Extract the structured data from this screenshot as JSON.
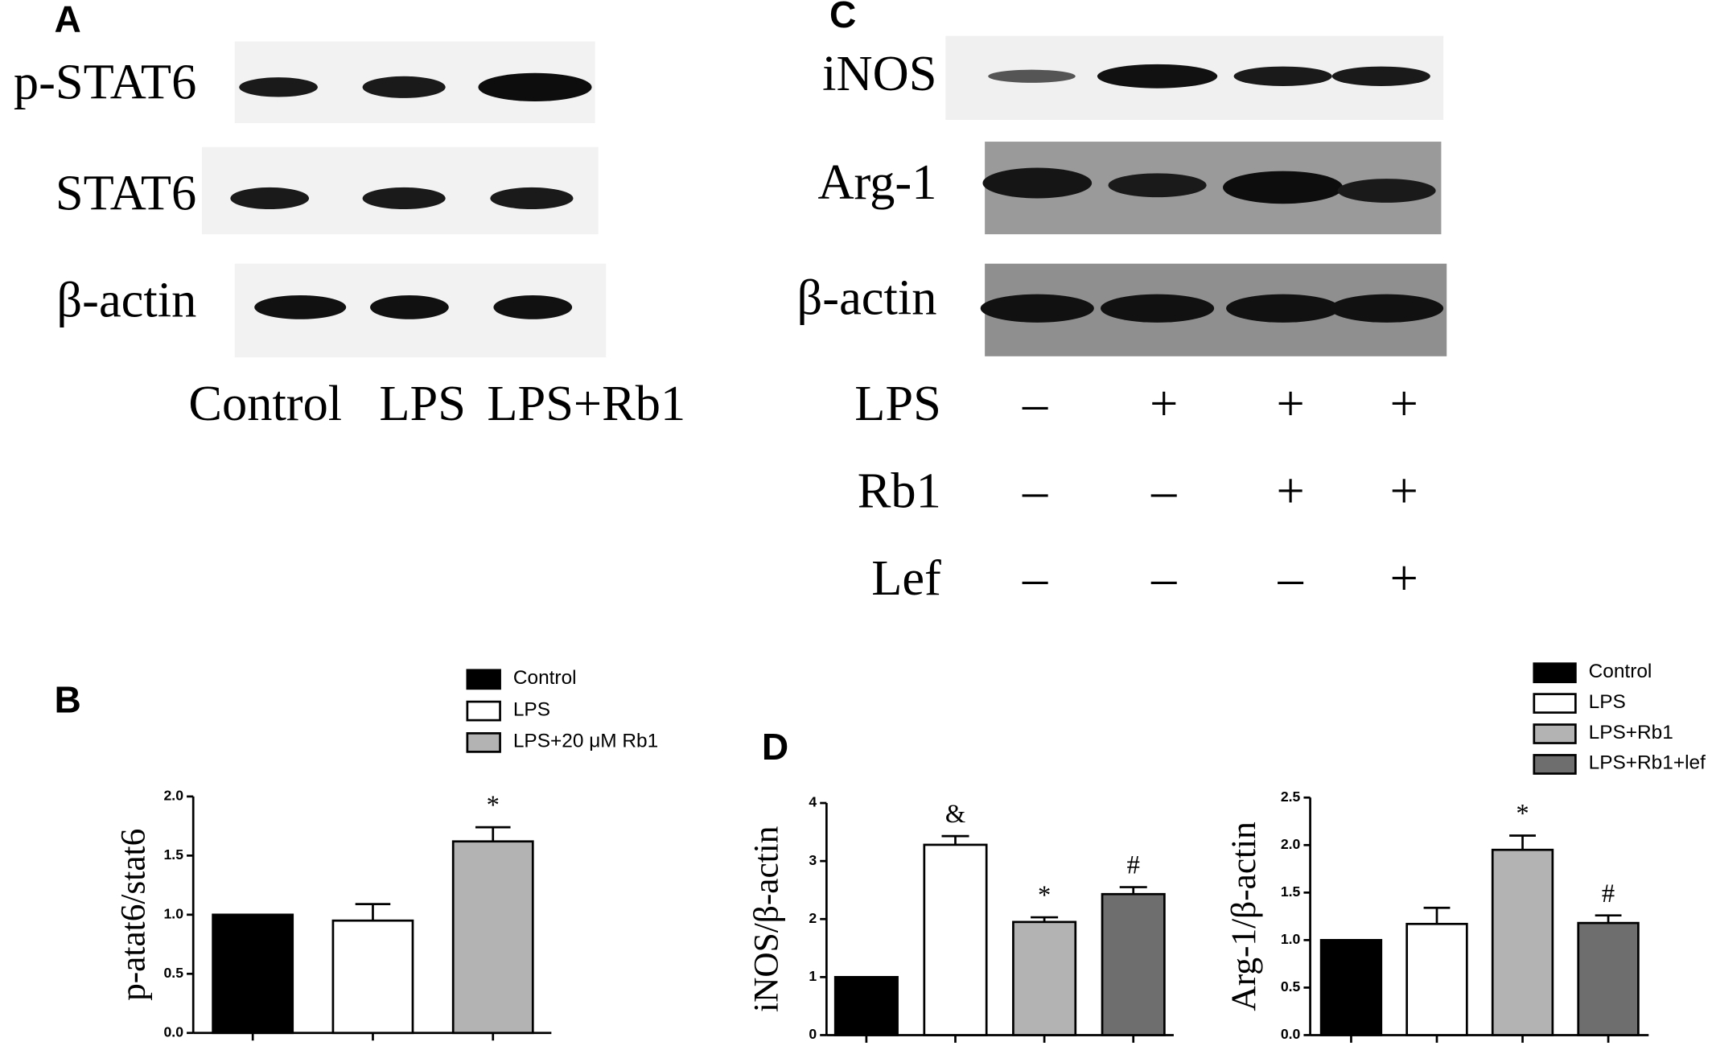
{
  "blot_a": {
    "panel": "A",
    "rows": [
      "p-STAT6",
      "STAT6",
      "β-actin"
    ],
    "lanes": [
      "Control",
      "LPS",
      "LPS+Rb1"
    ]
  },
  "blot_c": {
    "panel": "C",
    "rows": [
      "iNOS",
      "Arg-1",
      "β-actin"
    ],
    "treatments": [
      {
        "name": "LPS",
        "signs": [
          "–",
          "+",
          "+",
          "+"
        ]
      },
      {
        "name": "Rb1",
        "signs": [
          "–",
          "–",
          "+",
          "+"
        ]
      },
      {
        "name": "Lef",
        "signs": [
          "–",
          "–",
          "–",
          "+"
        ]
      }
    ]
  },
  "chart_data": [
    {
      "type": "bar",
      "panel": "B",
      "y_label": "p-atat6/stat6",
      "categories": [
        null
      ],
      "series": [
        {
          "name": "Control",
          "color": "#000000",
          "values": [
            1.0
          ],
          "errors": [
            0
          ]
        },
        {
          "name": "LPS",
          "color": "#ffffff",
          "values": [
            0.95
          ],
          "errors": [
            0.14
          ]
        },
        {
          "name": "LPS+20 μM Rb1",
          "color": "#b3b3b3",
          "values": [
            1.62
          ],
          "errors": [
            0.12
          ],
          "annotations": [
            "*"
          ]
        }
      ],
      "ylim": [
        0,
        2.0
      ],
      "yticks": [
        {
          "value": 0,
          "label": "0.0"
        },
        {
          "value": 0.5,
          "label": "0.5"
        },
        {
          "value": 1.0,
          "label": "1.0"
        },
        {
          "value": 1.5,
          "label": "1.5"
        },
        {
          "value": 2.0,
          "label": "2.0"
        }
      ]
    },
    {
      "type": "bar",
      "panel": "D",
      "y_label": "iNOS/β-actin",
      "categories": [
        null
      ],
      "series": [
        {
          "color": "#000000",
          "values": [
            1.0
          ],
          "errors": [
            0
          ]
        },
        {
          "color": "#ffffff",
          "values": [
            3.28
          ],
          "errors": [
            0.15
          ],
          "annotations": [
            "&"
          ]
        },
        {
          "color": "#b3b3b3",
          "values": [
            1.95
          ],
          "errors": [
            0.08
          ],
          "annotations": [
            "*"
          ]
        },
        {
          "color": "#6e6e6e",
          "values": [
            2.43
          ],
          "errors": [
            0.12
          ],
          "annotations": [
            "#"
          ]
        }
      ],
      "ylim": [
        0,
        4
      ],
      "yticks": [
        0,
        1,
        2,
        3,
        4
      ]
    },
    {
      "type": "bar",
      "y_label": "Arg-1/β-actin",
      "categories": [
        null
      ],
      "series": [
        {
          "name": "Control",
          "color": "#000000",
          "values": [
            1.0
          ],
          "errors": [
            0
          ]
        },
        {
          "name": "LPS",
          "color": "#ffffff",
          "values": [
            1.17
          ],
          "errors": [
            0.17
          ]
        },
        {
          "name": "LPS+Rb1",
          "color": "#b3b3b3",
          "values": [
            1.95
          ],
          "errors": [
            0.15
          ],
          "annotations": [
            "*"
          ]
        },
        {
          "name": "LPS+Rb1+lef",
          "color": "#6e6e6e",
          "values": [
            1.18
          ],
          "errors": [
            0.08
          ],
          "annotations": [
            "#"
          ]
        }
      ],
      "ylim": [
        0,
        2.5
      ],
      "yticks": [
        {
          "value": 0,
          "label": "0.0"
        },
        {
          "value": 0.5,
          "label": "0.5"
        },
        {
          "value": 1.0,
          "label": "1.0"
        },
        {
          "value": 1.5,
          "label": "1.5"
        },
        {
          "value": 2.0,
          "label": "2.0"
        },
        {
          "value": 2.5,
          "label": "2.5"
        }
      ]
    }
  ]
}
